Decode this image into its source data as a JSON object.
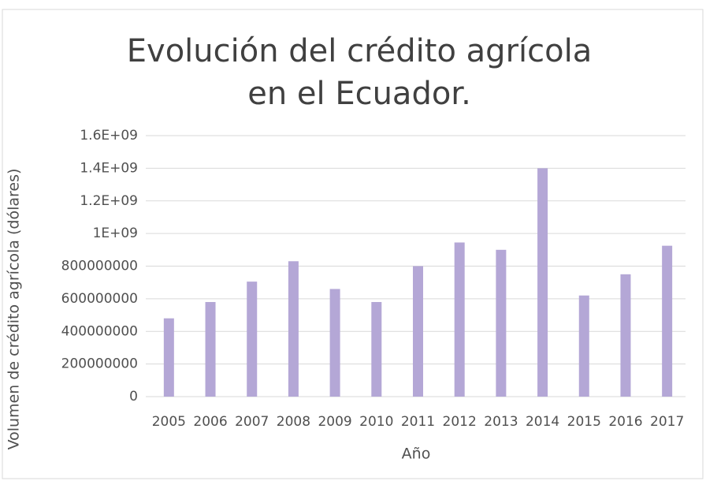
{
  "chart_data": {
    "type": "bar",
    "title": "Evolución del crédito agrícola en el Ecuador.",
    "x_label": "Año",
    "y_label": "Volumen de crédito agrícola (dólares)",
    "categories": [
      "2005",
      "2006",
      "2007",
      "2008",
      "2009",
      "2010",
      "2011",
      "2012",
      "2013",
      "2014",
      "2015",
      "2016",
      "2017"
    ],
    "values": [
      480000000,
      580000000,
      705000000,
      830000000,
      660000000,
      580000000,
      800000000,
      945000000,
      900000000,
      1400000000,
      620000000,
      750000000,
      925000000
    ],
    "color": "#b4a7d6",
    "ylim": [
      0,
      1600000000
    ],
    "yticks": [
      0,
      200000000,
      400000000,
      600000000,
      800000000,
      {
        "value": 1000000000,
        "label": "1E+09"
      },
      {
        "value": 1200000000,
        "label": "1.2E+09"
      },
      {
        "value": 1400000000,
        "label": "1.4E+09"
      },
      {
        "value": 1600000000,
        "label": "1.6E+09"
      }
    ],
    "grid": true
  }
}
